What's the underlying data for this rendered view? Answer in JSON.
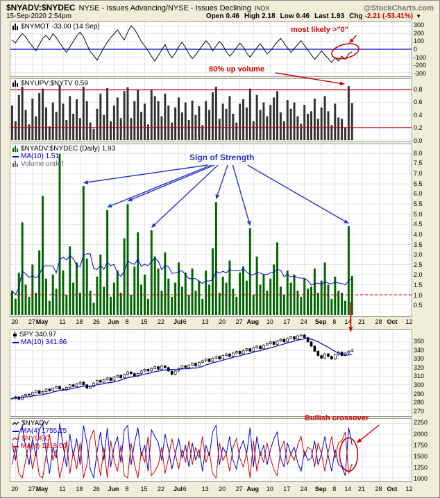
{
  "header": {
    "symbol": "$NYADV:$NYDEC",
    "description": "NYSE - Issues Advancing/NYSE - Issues Declining",
    "exchange": "INDX",
    "watermark": "@StockCharts.com",
    "datetime": "15-Sep-2020 2:54pm",
    "quote": [
      {
        "label": "Open",
        "value": "0.46"
      },
      {
        "label": "High",
        "value": "2.18"
      },
      {
        "label": "Low",
        "value": "0.46"
      },
      {
        "label": "Last",
        "value": "1.93"
      },
      {
        "label": "Chg",
        "value": "-2.21 (-53.41%)"
      }
    ],
    "direction_icon": "▼"
  },
  "x_axis": {
    "total_slots": 118,
    "ticks": [
      {
        "label": "20",
        "slot": 1,
        "bold": false
      },
      {
        "label": "27",
        "slot": 6,
        "bold": false
      },
      {
        "label": "May",
        "slot": 9,
        "bold": true
      },
      {
        "label": "11",
        "slot": 15,
        "bold": false
      },
      {
        "label": "18",
        "slot": 20,
        "bold": false
      },
      {
        "label": "26",
        "slot": 25,
        "bold": false
      },
      {
        "label": "Jun",
        "slot": 30,
        "bold": true
      },
      {
        "label": "8",
        "slot": 34,
        "bold": false
      },
      {
        "label": "15",
        "slot": 39,
        "bold": false
      },
      {
        "label": "22",
        "slot": 44,
        "bold": false
      },
      {
        "label": "Jul",
        "slot": 49,
        "bold": true
      },
      {
        "label": "6",
        "slot": 51,
        "bold": false
      },
      {
        "label": "13",
        "slot": 57,
        "bold": false
      },
      {
        "label": "20",
        "slot": 62,
        "bold": false
      },
      {
        "label": "27",
        "slot": 67,
        "bold": false
      },
      {
        "label": "Aug",
        "slot": 71,
        "bold": true
      },
      {
        "label": "10",
        "slot": 76,
        "bold": false
      },
      {
        "label": "17",
        "slot": 81,
        "bold": false
      },
      {
        "label": "24",
        "slot": 86,
        "bold": false
      },
      {
        "label": "Sep",
        "slot": 91,
        "bold": true
      },
      {
        "label": "8",
        "slot": 95,
        "bold": false
      },
      {
        "label": "14",
        "slot": 99,
        "bold": false
      },
      {
        "label": "21",
        "slot": 103,
        "bold": false
      },
      {
        "label": "28",
        "slot": 108,
        "bold": false
      },
      {
        "label": "Oct",
        "slot": 112,
        "bold": true
      },
      {
        "label": "12",
        "slot": 117,
        "bold": false
      }
    ]
  },
  "chart_data": [
    {
      "id": "nymot",
      "type": "line",
      "legend": "$NYMOT -33.00 (14 Sep)",
      "color": "#000000",
      "zero_line_color": "#0000bb",
      "ylim": [
        -330,
        330
      ],
      "y_ticks": [
        "300",
        "200",
        "100",
        "0",
        "-100",
        "-200",
        "-300"
      ],
      "values": [
        120,
        80,
        150,
        200,
        160,
        90,
        40,
        -20,
        60,
        140,
        180,
        120,
        200,
        150,
        80,
        20,
        -40,
        30,
        100,
        170,
        220,
        160,
        60,
        -30,
        -80,
        -140,
        -60,
        20,
        90,
        150,
        200,
        250,
        180,
        120,
        220,
        300,
        260,
        180,
        100,
        40,
        -20,
        -90,
        -150,
        -80,
        -10,
        60,
        -40,
        -110,
        -50,
        30,
        90,
        20,
        -60,
        -120,
        -70,
        -10,
        50,
        110,
        60,
        -20,
        40,
        100,
        50,
        -30,
        -90,
        -40,
        20,
        80,
        30,
        -50,
        -100,
        -40,
        20,
        70,
        10,
        -60,
        -20,
        40,
        90,
        140,
        80,
        20,
        -40,
        10,
        60,
        110,
        50,
        -10,
        -70,
        -130,
        -80,
        -20,
        -70,
        -120,
        -170,
        -110,
        -150,
        -90,
        -130,
        -60,
        -33
      ]
    },
    {
      "id": "upv",
      "type": "bar",
      "legend": "$NYUPV:$NYTV 0.59",
      "bar_color": "#333333",
      "hlines": [
        {
          "y": 0.8,
          "color": "#cc0000"
        },
        {
          "y": 0.2,
          "color": "#cc0000"
        }
      ],
      "ylim": [
        0,
        0.95
      ],
      "y_ticks": [
        "0.8",
        "0.6",
        "0.4",
        "0.2",
        "0.0"
      ],
      "values": [
        0.55,
        0.3,
        0.72,
        0.85,
        0.48,
        0.25,
        0.66,
        0.38,
        0.75,
        0.82,
        0.52,
        0.22,
        0.6,
        0.45,
        0.88,
        0.58,
        0.32,
        0.7,
        0.42,
        0.65,
        0.35,
        0.85,
        0.62,
        0.28,
        0.18,
        0.5,
        0.74,
        0.4,
        0.83,
        0.3,
        0.55,
        0.68,
        0.35,
        0.78,
        0.84,
        0.35,
        0.62,
        0.8,
        0.45,
        0.58,
        0.25,
        0.8,
        0.7,
        0.62,
        0.38,
        0.74,
        0.55,
        0.28,
        0.52,
        0.68,
        0.44,
        0.6,
        0.32,
        0.63,
        0.4,
        0.54,
        0.24,
        0.62,
        0.48,
        0.76,
        0.85,
        0.34,
        0.58,
        0.5,
        0.7,
        0.42,
        0.28,
        0.58,
        0.65,
        0.52,
        0.82,
        0.3,
        0.72,
        0.48,
        0.6,
        0.38,
        0.56,
        0.68,
        0.78,
        0.44,
        0.3,
        0.64,
        0.5,
        0.6,
        0.38,
        0.26,
        0.56,
        0.42,
        0.46,
        0.66,
        0.34,
        0.52,
        0.7,
        0.46,
        0.24,
        0.58,
        0.36,
        0.34,
        0.2,
        0.86,
        0.59
      ]
    },
    {
      "id": "ratio",
      "type": "bar",
      "legend": "$NYADV:$NYDEC (Daily) 1.93",
      "legend_ma": "MA(10) 1.51",
      "legend_vol": "Volume undef",
      "bar_color": "#006600",
      "ma_color": "#0000cc",
      "ma_period": 10,
      "dashed_line": {
        "y": 1.0,
        "color": "#cc0000"
      },
      "ylim": [
        0,
        8.4
      ],
      "y_ticks": [
        "8.0",
        "7.5",
        "7.0",
        "6.5",
        "6.0",
        "5.5",
        "5.0",
        "4.5",
        "4.0",
        "3.5",
        "3.0",
        "2.5",
        "2.0",
        "1.5",
        "1.0",
        "0.5"
      ],
      "values": [
        1.2,
        0.8,
        2.1,
        4.6,
        1.5,
        0.9,
        2.5,
        1.1,
        3.2,
        5.9,
        1.8,
        0.7,
        2.0,
        1.3,
        8.0,
        2.2,
        1.0,
        3.4,
        1.6,
        2.6,
        1.1,
        6.4,
        2.8,
        1.2,
        0.6,
        1.9,
        3.0,
        1.4,
        5.2,
        0.9,
        1.6,
        2.2,
        1.1,
        3.8,
        5.5,
        1.0,
        2.4,
        4.1,
        1.5,
        2.0,
        0.8,
        4.2,
        2.9,
        2.3,
        1.2,
        3.1,
        1.8,
        0.9,
        1.6,
        2.6,
        1.4,
        2.1,
        1.0,
        2.3,
        1.2,
        1.7,
        0.8,
        2.2,
        1.5,
        3.3,
        5.6,
        1.1,
        1.9,
        1.6,
        2.7,
        1.3,
        0.9,
        2.1,
        2.4,
        1.7,
        4.3,
        1.0,
        2.9,
        1.5,
        2.0,
        1.2,
        1.8,
        2.5,
        3.6,
        1.4,
        1.0,
        2.2,
        1.6,
        2.0,
        1.2,
        0.9,
        1.8,
        1.3,
        1.4,
        2.3,
        1.1,
        1.7,
        2.6,
        1.5,
        0.8,
        1.9,
        1.2,
        1.1,
        0.7,
        4.4,
        1.93
      ]
    },
    {
      "id": "spy",
      "type": "candlestick",
      "legend": "SPY 340.97",
      "legend_ma": "MA(10) 341.86",
      "ma_color": "#0000cc",
      "ma_period": 10,
      "ylim": [
        265,
        362
      ],
      "y_ticks": [
        "350",
        "340",
        "330",
        "320",
        "310",
        "300",
        "290",
        "280",
        "270"
      ],
      "closes": [
        284,
        286,
        283,
        287,
        289,
        288,
        291,
        293,
        290,
        292,
        295,
        293,
        296,
        298,
        295,
        294,
        297,
        300,
        298,
        301,
        303,
        300,
        296,
        298,
        302,
        305,
        303,
        306,
        308,
        305,
        309,
        311,
        308,
        312,
        315,
        313,
        310,
        313,
        316,
        318,
        316,
        319,
        321,
        318,
        322,
        320,
        316,
        312,
        316,
        319,
        322,
        320,
        323,
        325,
        322,
        326,
        328,
        330,
        327,
        331,
        333,
        330,
        334,
        336,
        333,
        337,
        339,
        336,
        340,
        342,
        339,
        343,
        345,
        342,
        346,
        348,
        350,
        347,
        351,
        353,
        350,
        354,
        356,
        353,
        357,
        358,
        355,
        350,
        345,
        339,
        334,
        331,
        336,
        333,
        330,
        335,
        338,
        334,
        337,
        339,
        341
      ]
    },
    {
      "id": "breadth",
      "type": "line",
      "legend_adv": "$NYADV",
      "legend_adv_ma": "MA(4) 1755.25",
      "legend_dec": "$NYDEC",
      "legend_dec_ma": "MA(4) 1318.00",
      "ylim": [
        950,
        2320
      ],
      "y_ticks": [
        "2250",
        "2000",
        "1750",
        "1500",
        "1250",
        "1000"
      ],
      "series": [
        {
          "name": "$NYADV MA(4)",
          "color": "#0000cc",
          "values": [
            1800,
            1400,
            2000,
            2200,
            1700,
            1300,
            1900,
            1500,
            2100,
            2250,
            1600,
            1100,
            1700,
            1450,
            2250,
            1750,
            1250,
            2000,
            1500,
            1900,
            1300,
            2200,
            1800,
            1200,
            1000,
            1600,
            2050,
            1400,
            2150,
            1250,
            1700,
            1950,
            1350,
            2100,
            2200,
            1300,
            1800,
            2150,
            1500,
            1750,
            1150,
            2100,
            1950,
            1800,
            1400,
            2000,
            1650,
            1200,
            1550,
            1900,
            1450,
            1750,
            1250,
            1800,
            1400,
            1650,
            1150,
            1750,
            1500,
            2050,
            2200,
            1300,
            1700,
            1550,
            1950,
            1400,
            1200,
            1650,
            1850,
            1550,
            2150,
            1250,
            1950,
            1500,
            1750,
            1300,
            1650,
            1900,
            2050,
            1450,
            1250,
            1800,
            1550,
            1700,
            1350,
            1150,
            1600,
            1400,
            1450,
            1850,
            1300,
            1550,
            1950,
            1500,
            1150,
            1650,
            1300,
            1250,
            1050,
            2150,
            1755
          ]
        },
        {
          "name": "$NYDEC MA(4)",
          "color": "#cc0000",
          "values": [
            1300,
            1700,
            1100,
            1000,
            1400,
            1800,
            1200,
            1600,
            1050,
            1000,
            1500,
            2000,
            1400,
            1650,
            1000,
            1350,
            1850,
            1100,
            1600,
            1200,
            1800,
            1000,
            1300,
            1900,
            2100,
            1500,
            1050,
            1700,
            1000,
            1850,
            1400,
            1150,
            1750,
            1050,
            1000,
            1800,
            1300,
            1000,
            1600,
            1350,
            1950,
            1050,
            1150,
            1300,
            1700,
            1100,
            1450,
            1900,
            1550,
            1200,
            1650,
            1350,
            1850,
            1300,
            1700,
            1450,
            1950,
            1350,
            1600,
            1100,
            1000,
            1800,
            1400,
            1550,
            1150,
            1700,
            1900,
            1450,
            1250,
            1550,
            1000,
            1850,
            1150,
            1600,
            1350,
            1800,
            1450,
            1200,
            1050,
            1650,
            1850,
            1300,
            1550,
            1400,
            1750,
            1950,
            1500,
            1700,
            1650,
            1250,
            1800,
            1550,
            1150,
            1600,
            1950,
            1450,
            1800,
            1850,
            2050,
            1100,
            1318
          ]
        }
      ]
    }
  ],
  "annotations": {
    "most_likely": {
      "text": "most likely >\"0\"",
      "color": "#cc0000",
      "slot": 98
    },
    "up_volume": {
      "text": "80% up volume",
      "color": "#cc0000",
      "target_slot": 99
    },
    "sign_of_strength": {
      "text": "Sign of Strength",
      "color": "#2233cc",
      "slots": [
        21,
        28,
        34,
        41,
        60,
        70,
        99
      ]
    },
    "sell_arrow": {
      "slot": 99,
      "color": "#cc0000"
    },
    "bullish_crossover": {
      "text": "Bullish crossover",
      "color": "#cc0000",
      "slot": 99
    }
  }
}
